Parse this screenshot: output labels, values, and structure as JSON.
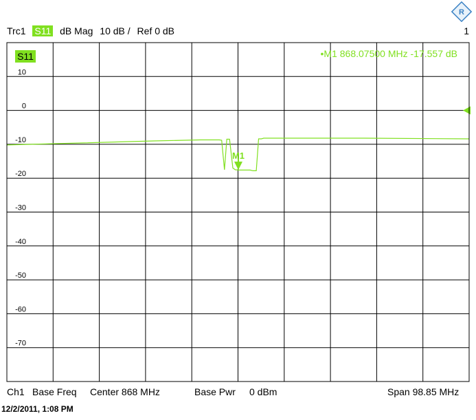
{
  "header": {
    "trace": "Trc1",
    "param": "S11",
    "format": "dB Mag",
    "scale": "10 dB /",
    "ref": "Ref 0 dB",
    "channel_number": "1"
  },
  "footer": {
    "channel": "Ch1",
    "base_freq": "Base Freq",
    "center": "Center  868 MHz",
    "base_pwr": "Base Pwr",
    "pwr_value": "0 dBm",
    "span": "Span  98.85 MHz"
  },
  "timestamp": "12/2/2011, 1:08 PM",
  "colors": {
    "trace": "#80e020",
    "grid": "#000000"
  },
  "chart_data": {
    "type": "line",
    "title": "S11",
    "xlabel": "",
    "ylabel": "dB Mag",
    "xlim": [
      818.575,
      917.425
    ],
    "ylim": [
      -80,
      20
    ],
    "grid": true,
    "yticks": [
      10,
      0,
      -10,
      -20,
      -30,
      -40,
      -50,
      -60,
      -70
    ],
    "ytick_labels": [
      "10",
      "0",
      "-10",
      "-20",
      "-30",
      "-40",
      "-50",
      "-60",
      "-70"
    ],
    "reference_level": 0,
    "series": [
      {
        "name": "S11",
        "x": [
          818.575,
          835,
          850,
          860,
          864.0,
          864.5,
          865.1,
          865.6,
          866.2,
          866.9,
          867.4,
          868.0,
          868.5,
          870.6,
          871.2,
          871.9,
          872.4,
          873.0,
          873.5,
          880,
          895,
          917.425
        ],
        "y": [
          -10.2,
          -9.6,
          -9.0,
          -8.7,
          -8.7,
          -8.8,
          -17.5,
          -8.5,
          -8.5,
          -17.0,
          -17.5,
          -17.6,
          -17.6,
          -17.6,
          -17.8,
          -17.8,
          -8.4,
          -8.4,
          -8.2,
          -8.2,
          -8.2,
          -8.4
        ]
      }
    ],
    "markers": [
      {
        "id": "M1",
        "label": "M1",
        "x": 868.075,
        "y": -17.557
      }
    ],
    "marker_readout": "•M1  868.07500 MHz  -17.557 dB"
  }
}
